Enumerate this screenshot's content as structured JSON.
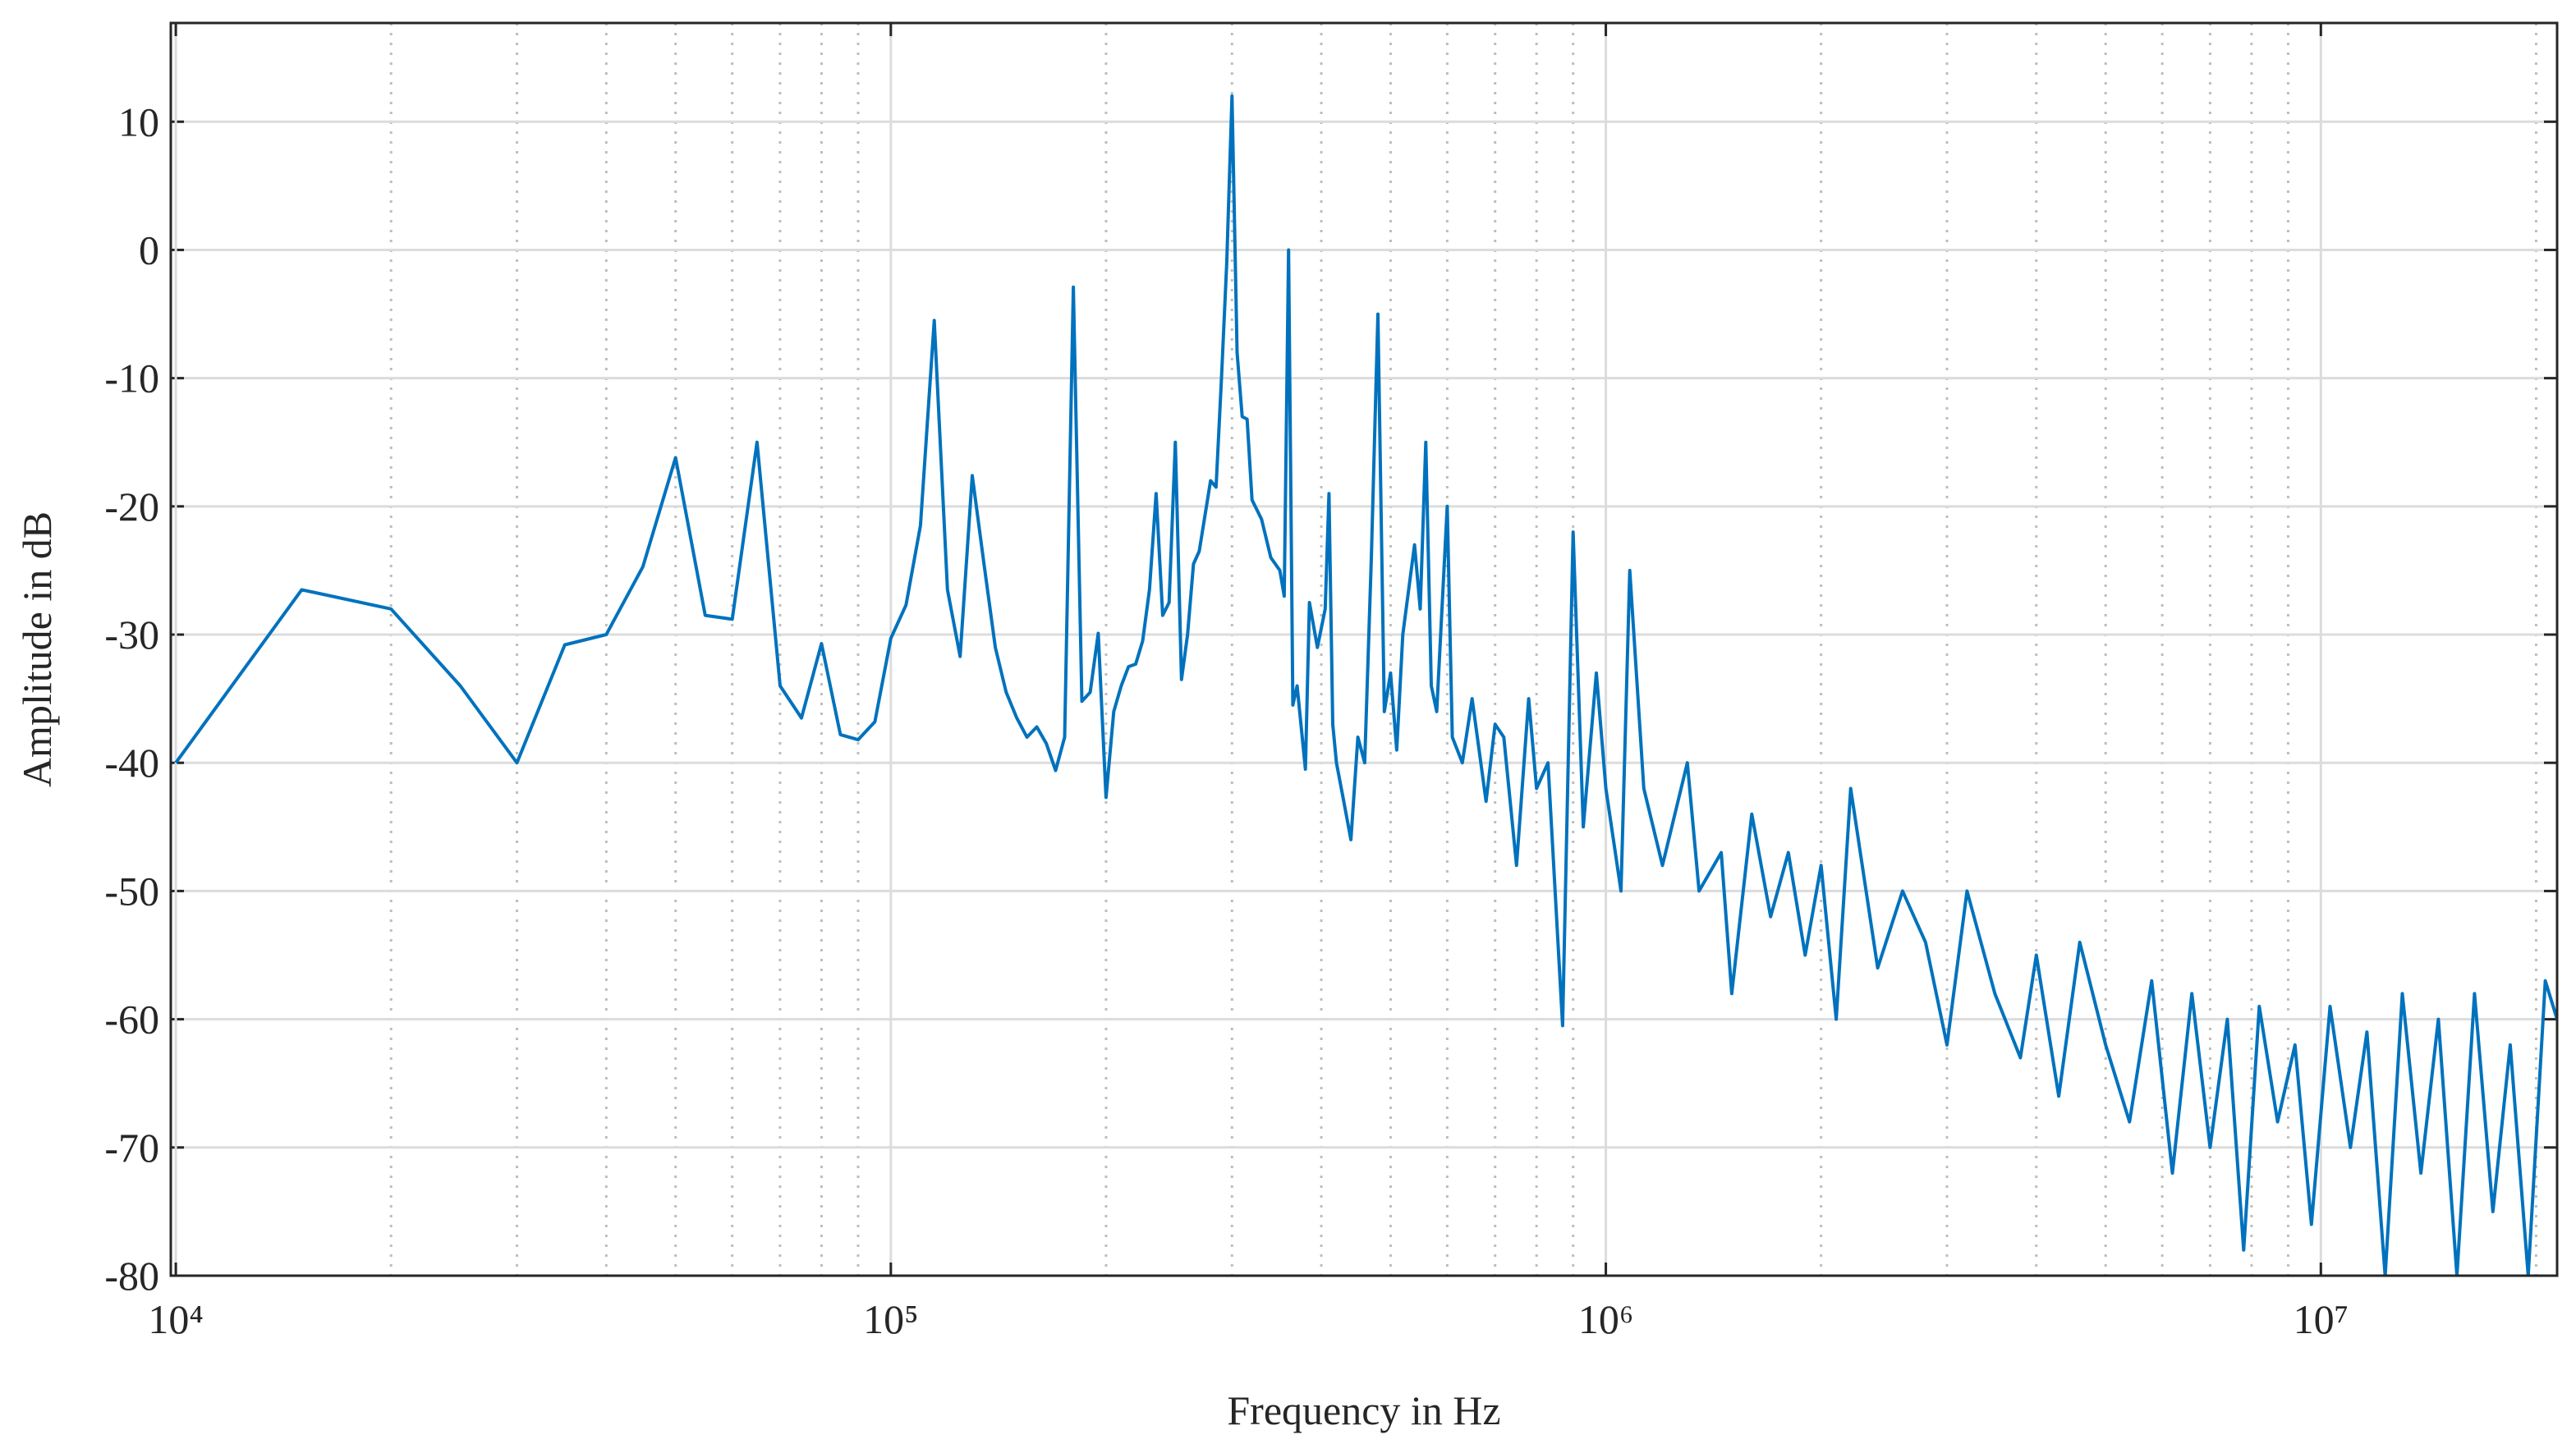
{
  "chart_data": {
    "type": "line",
    "xlabel": "Frequency in Hz",
    "ylabel": "Amplitude in dB",
    "xscale": "log",
    "grid": true,
    "minor_grid": true,
    "xlim": [
      9840,
      21400000
    ],
    "ylim": [
      -80,
      17.7
    ],
    "xticks": [
      {
        "value": 10000,
        "label": "10⁴"
      },
      {
        "value": 100000,
        "label": "10⁵"
      },
      {
        "value": 1000000,
        "label": "10⁶"
      },
      {
        "value": 10000000,
        "label": "10⁷"
      }
    ],
    "yticks": [
      -80,
      -70,
      -60,
      -50,
      -40,
      -30,
      -20,
      -10,
      0,
      10
    ],
    "series": [
      {
        "color": "#0072bd",
        "x": [
          10000,
          15000,
          20000,
          25000,
          30000,
          35000,
          40000,
          45000,
          50000,
          55000,
          60000,
          65000,
          70000,
          75000,
          80000,
          85000,
          90000,
          95000,
          100000,
          105000,
          110000,
          115000,
          120000,
          125000,
          130000,
          135000,
          140000,
          145000,
          150000,
          155000,
          160000,
          165000,
          170000,
          175000,
          180000,
          185000,
          190000,
          195000,
          200000,
          205000,
          210000,
          215000,
          220000,
          225000,
          230000,
          235000,
          240000,
          245000,
          250000,
          255000,
          260000,
          265000,
          270000,
          280000,
          285000,
          290000,
          295000,
          300000,
          305000,
          310000,
          315000,
          320000,
          330000,
          340000,
          350000,
          355000,
          360000,
          365000,
          370000,
          380000,
          385000,
          395000,
          405000,
          410000,
          415000,
          420000,
          430000,
          440000,
          450000,
          460000,
          470000,
          480000,
          490000,
          500000,
          510000,
          520000,
          540000,
          550000,
          560000,
          570000,
          580000,
          600000,
          610000,
          630000,
          650000,
          680000,
          700000,
          720000,
          750000,
          780000,
          800000,
          830000,
          870000,
          900000,
          930000,
          970000,
          1000000,
          1050000,
          1080000,
          1130000,
          1200000,
          1300000,
          1350000,
          1450000,
          1500000,
          1600000,
          1700000,
          1800000,
          1900000,
          2000000,
          2100000,
          2200000,
          2400000,
          2600000,
          2800000,
          3000000,
          3200000,
          3500000,
          3800000,
          4000000,
          4300000,
          4600000,
          5000000,
          5400000,
          5800000,
          6200000,
          6600000,
          7000000,
          7400000,
          7800000,
          8200000,
          8700000,
          9200000,
          9700000,
          10300000,
          11000000,
          11600000,
          12300000,
          13000000,
          13800000,
          14600000,
          15500000,
          16400000,
          17400000,
          18400000,
          19500000,
          20600000,
          21400000
        ],
        "values": [
          -40,
          -26.5,
          -28,
          -34,
          -40,
          -30.8,
          -30,
          -24.7,
          -16.2,
          -28.5,
          -28.8,
          -15,
          -34,
          -36.5,
          -30.7,
          -37.8,
          -38.2,
          -36.8,
          -30.3,
          -27.7,
          -21.5,
          -5.5,
          -26.5,
          -31.7,
          -17.6,
          -24.5,
          -31,
          -34.5,
          -36.5,
          -38,
          -37.2,
          -38.5,
          -40.6,
          -38,
          -2.9,
          -35.2,
          -34.5,
          -29.9,
          -42.7,
          -36,
          -34,
          -32.5,
          -32.3,
          -30.5,
          -26.5,
          -19,
          -28.5,
          -27.5,
          -15,
          -33.5,
          -30,
          -24.5,
          -23.5,
          -18,
          -18.5,
          -10,
          -1,
          12,
          -8,
          -13,
          -13.2,
          -19.5,
          -21,
          -24,
          -25,
          -27,
          0,
          -35.5,
          -34,
          -40.5,
          -27.5,
          -31,
          -28,
          -19,
          -37,
          -40,
          -43,
          -46,
          -38,
          -40,
          -24,
          -5,
          -36,
          -33,
          -39,
          -30,
          -23,
          -28,
          -15,
          -34,
          -36,
          -20,
          -38,
          -40,
          -35,
          -43,
          -37,
          -38,
          -48,
          -35,
          -42,
          -40,
          -60.5,
          -22,
          -45,
          -33,
          -42,
          -50,
          -25,
          -42,
          -48,
          -40,
          -50,
          -47,
          -58,
          -44,
          -52,
          -47,
          -55,
          -48,
          -60,
          -42,
          -56,
          -50,
          -54,
          -62,
          -50,
          -58,
          -63,
          -55,
          -66,
          -54,
          -62,
          -68,
          -57,
          -72,
          -58,
          -70,
          -60,
          -78,
          -59,
          -68,
          -62,
          -76,
          -59,
          -70,
          -61,
          -80,
          -58,
          -72,
          -60,
          -80,
          -58,
          -75,
          -62,
          -80,
          -57,
          -60
        ]
      }
    ]
  }
}
